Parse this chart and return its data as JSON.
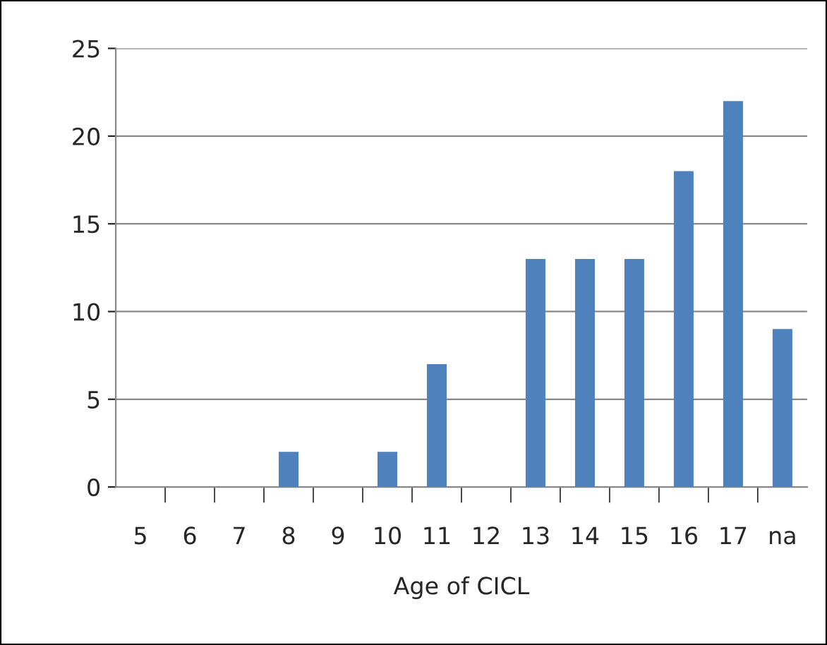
{
  "chart_data": {
    "type": "bar",
    "xlabel": "Age of CICL",
    "categories": [
      "5",
      "6",
      "7",
      "8",
      "9",
      "10",
      "11",
      "12",
      "13",
      "14",
      "15",
      "16",
      "17",
      "na"
    ],
    "values": [
      0,
      0,
      0,
      2,
      0,
      2,
      7,
      0,
      13,
      13,
      13,
      18,
      22,
      9
    ],
    "color": "#4f81bd",
    "ylim": [
      0,
      25
    ],
    "yticks": [
      0,
      5,
      10,
      15,
      20,
      25
    ],
    "grid": "y",
    "legend": false
  }
}
